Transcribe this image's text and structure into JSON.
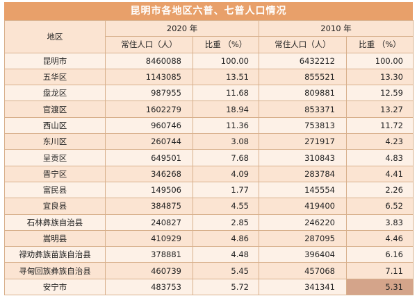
{
  "title": "昆明市各地区六普、七普人口情况",
  "header": {
    "region": "地区",
    "year_2020": "2020 年",
    "year_2010": "2010 年",
    "pop": "常住人口（人）",
    "pct": "比重 （%）"
  },
  "rows": [
    {
      "name": "昆明市",
      "pop2020": "8460088",
      "pct2020": "100.00",
      "pop2010": "6432212",
      "pct2010": "100.00"
    },
    {
      "name": "五华区",
      "pop2020": "1143085",
      "pct2020": "13.51",
      "pop2010": "855521",
      "pct2010": "13.30"
    },
    {
      "name": "盘龙区",
      "pop2020": "987955",
      "pct2020": "11.68",
      "pop2010": "809881",
      "pct2010": "12.59"
    },
    {
      "name": "官渡区",
      "pop2020": "1602279",
      "pct2020": "18.94",
      "pop2010": "853371",
      "pct2010": "13.27"
    },
    {
      "name": "西山区",
      "pop2020": "960746",
      "pct2020": "11.36",
      "pop2010": "753813",
      "pct2010": "11.72"
    },
    {
      "name": "东川区",
      "pop2020": "260744",
      "pct2020": "3.08",
      "pop2010": "271917",
      "pct2010": "4.23"
    },
    {
      "name": "呈贡区",
      "pop2020": "649501",
      "pct2020": "7.68",
      "pop2010": "310843",
      "pct2010": "4.83"
    },
    {
      "name": "晋宁区",
      "pop2020": "346268",
      "pct2020": "4.09",
      "pop2010": "283784",
      "pct2010": "4.41"
    },
    {
      "name": "富民县",
      "pop2020": "149506",
      "pct2020": "1.77",
      "pop2010": "145554",
      "pct2010": "2.26"
    },
    {
      "name": "宜良县",
      "pop2020": "384875",
      "pct2020": "4.55",
      "pop2010": "419400",
      "pct2010": "6.52"
    },
    {
      "name": "石林彝族自治县",
      "pop2020": "240827",
      "pct2020": "2.85",
      "pop2010": "246220",
      "pct2010": "3.83"
    },
    {
      "name": "嵩明县",
      "pop2020": "410929",
      "pct2020": "4.86",
      "pop2010": "287095",
      "pct2010": "4.46"
    },
    {
      "name": "禄劝彝族苗族自治县",
      "pop2020": "378881",
      "pct2020": "4.48",
      "pop2010": "396404",
      "pct2010": "6.16"
    },
    {
      "name": "寻甸回族彝族自治县",
      "pop2020": "460739",
      "pct2020": "5.45",
      "pop2010": "457068",
      "pct2010": "7.11"
    },
    {
      "name": "安宁市",
      "pop2020": "483753",
      "pct2020": "5.72",
      "pop2010": "341341",
      "pct2010": "5.31"
    }
  ]
}
